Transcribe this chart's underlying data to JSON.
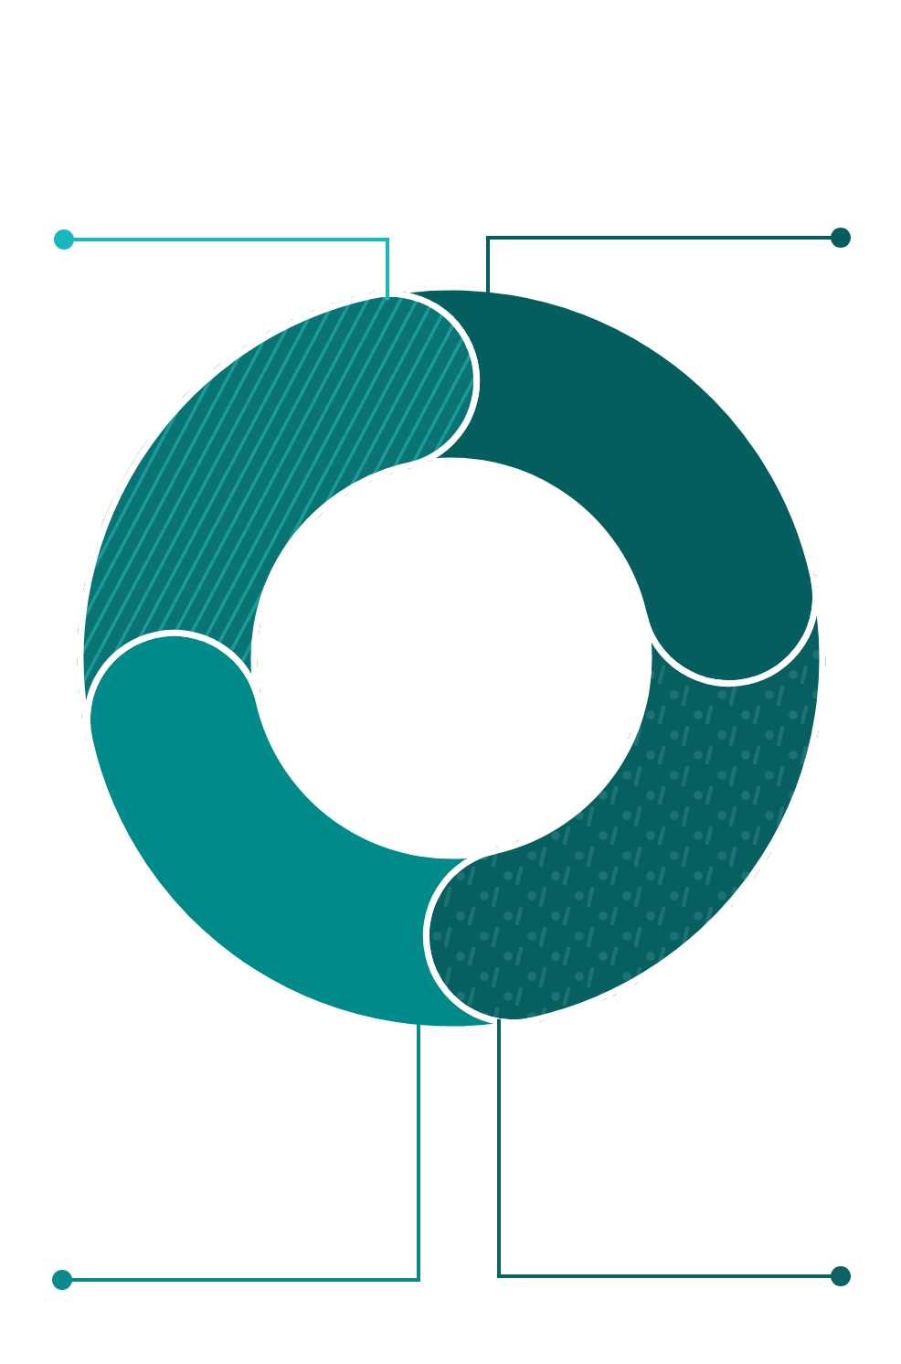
{
  "chart_data": {
    "type": "donut",
    "categories": [
      null,
      null,
      null,
      null
    ],
    "values": [
      25,
      25,
      25,
      25
    ],
    "colors": [
      "#035e5d",
      "#085f5f",
      "#018a8a",
      "#0a7373"
    ]
  }
}
